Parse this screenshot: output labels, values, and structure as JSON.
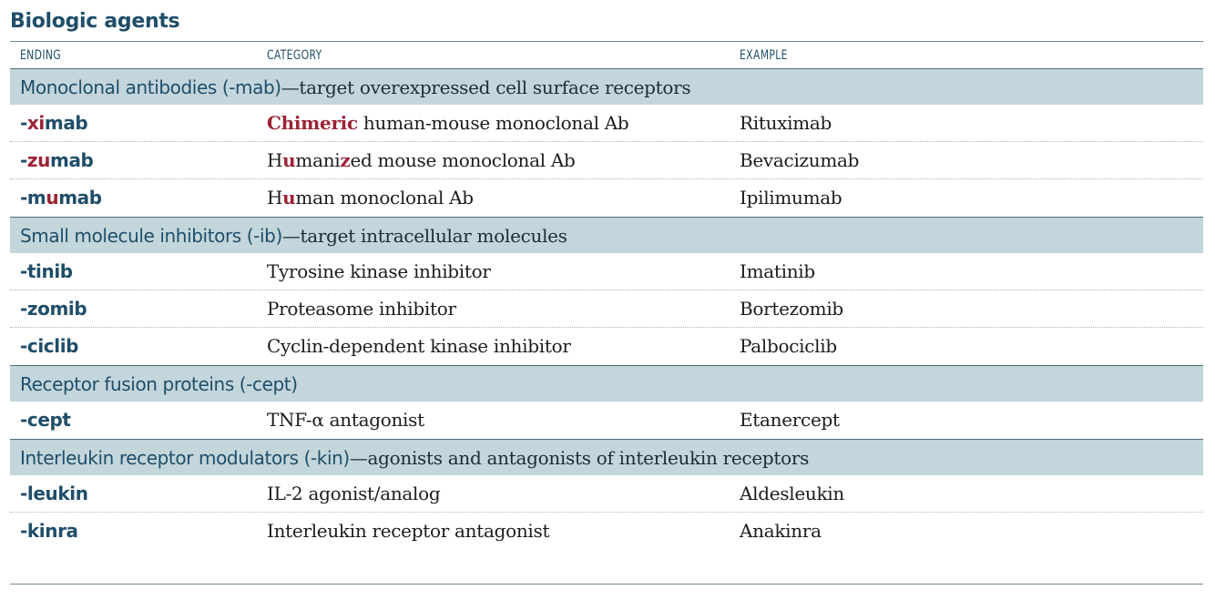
{
  "title": "Biologic agents",
  "columns": {
    "ending": "ENDING",
    "category": "CATEGORY",
    "example": "EXAMPLE"
  },
  "sections": [
    {
      "name": "Monoclonal antibodies (-mab)",
      "description": "—target overexpressed cell surface receptors",
      "rows": [
        {
          "ending": [
            "-",
            "xi",
            "mab"
          ],
          "category": [
            "",
            "Chimeric",
            " human-mouse monoclonal Ab"
          ],
          "example": "Rituximab"
        },
        {
          "ending": [
            "-",
            "zu",
            "mab"
          ],
          "category": [
            "H",
            "u",
            "mani",
            "z",
            "ed mouse monoclonal Ab"
          ],
          "example": "Bevacizumab"
        },
        {
          "ending": [
            "-m",
            "u",
            "mab"
          ],
          "category": [
            "H",
            "u",
            "man monoclonal Ab"
          ],
          "example": "Ipilimumab"
        }
      ]
    },
    {
      "name": "Small molecule inhibitors (-ib)",
      "description": "—target intracellular molecules",
      "rows": [
        {
          "ending": "-tinib",
          "category": "Tyrosine kinase inhibitor",
          "example": "Imatinib"
        },
        {
          "ending": "-zomib",
          "category": "Proteasome inhibitor",
          "example": "Bortezomib"
        },
        {
          "ending": "-ciclib",
          "category": "Cyclin-dependent kinase inhibitor",
          "example": "Palbociclib"
        }
      ]
    },
    {
      "name": "Receptor fusion proteins (-cept)",
      "description": "",
      "rows": [
        {
          "ending": "-cept",
          "category": "TNF-α antagonist",
          "example": "Etanercept"
        }
      ]
    },
    {
      "name": "Interleukin receptor modulators (-kin)",
      "description": "—agonists and antagonists of interleukin receptors",
      "rows": [
        {
          "ending": "-leukin",
          "category": "IL-2 agonist/analog",
          "example": "Aldesleukin"
        },
        {
          "ending": "-kinra",
          "category": "Interleukin receptor antagonist",
          "example": "Anakinra"
        }
      ]
    }
  ],
  "colors": {
    "heading": "#1f4e68",
    "section_band": "#c3d6dc",
    "highlight": "#9b2335"
  }
}
